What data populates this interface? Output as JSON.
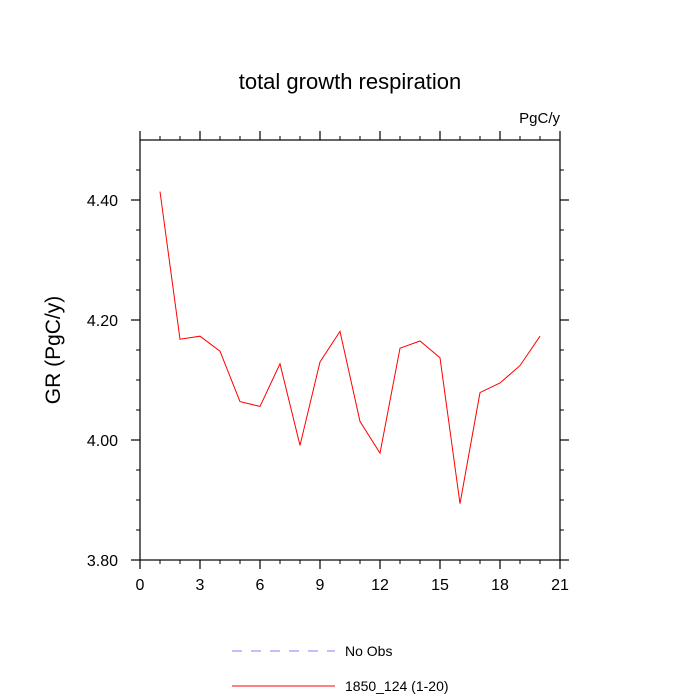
{
  "chart_data": {
    "type": "line",
    "title": "total growth respiration",
    "units_label": "PgC/y",
    "ylabel": "GR  (PgC/y)",
    "xlabel": "",
    "xlim": [
      0,
      21
    ],
    "ylim": [
      3.8,
      4.5
    ],
    "x_ticks": [
      0,
      3,
      6,
      9,
      12,
      15,
      18,
      21
    ],
    "x_tick_labels": [
      "0",
      "3",
      "6",
      "9",
      "12",
      "15",
      "18",
      "21"
    ],
    "y_ticks": [
      3.8,
      4.0,
      4.2,
      4.4
    ],
    "y_tick_labels": [
      "3.80",
      "4.00",
      "4.20",
      "4.40"
    ],
    "series": [
      {
        "name": "1850_124 (1-20)",
        "color": "#ff0000",
        "dash": "solid",
        "x": [
          1,
          2,
          3,
          4,
          5,
          6,
          7,
          8,
          9,
          10,
          11,
          12,
          13,
          14,
          15,
          16,
          17,
          18,
          19,
          20
        ],
        "values": [
          4.414,
          4.168,
          4.173,
          4.148,
          4.064,
          4.056,
          4.127,
          3.991,
          4.13,
          4.181,
          4.031,
          3.978,
          4.153,
          4.165,
          4.137,
          3.894,
          4.079,
          4.095,
          4.124,
          4.173
        ]
      }
    ],
    "legend": [
      {
        "label": "No Obs",
        "color": "#8080ff",
        "dash": "dashed"
      },
      {
        "label": "1850_124 (1-20)",
        "color": "#ff0000",
        "dash": "solid"
      }
    ],
    "legend_position": "bottom-center",
    "grid": false
  }
}
